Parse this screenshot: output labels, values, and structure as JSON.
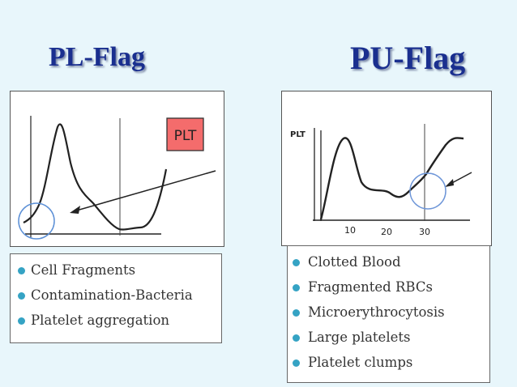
{
  "titles": {
    "left": "PL-Flag",
    "right": "PU-Flag"
  },
  "left_panel": {
    "badge": "PLT",
    "colors": {
      "badge_fill": "#f46c6c",
      "circle": "#5b8fd6",
      "curve": "#222222"
    }
  },
  "right_panel": {
    "axis_label": "PLT",
    "ticks": [
      "10",
      "20",
      "30"
    ],
    "colors": {
      "circle": "#6e96d8",
      "curve": "#222222"
    }
  },
  "left_list": {
    "items": [
      "Cell Fragments",
      "Contamination-Bacteria",
      "Platelet aggregation"
    ]
  },
  "right_list": {
    "items": [
      "Clotted Blood",
      "Fragmented RBCs",
      "Microerythrocytosis",
      "Large platelets",
      "Platelet clumps"
    ]
  },
  "bullet_color": "#35a3c4"
}
